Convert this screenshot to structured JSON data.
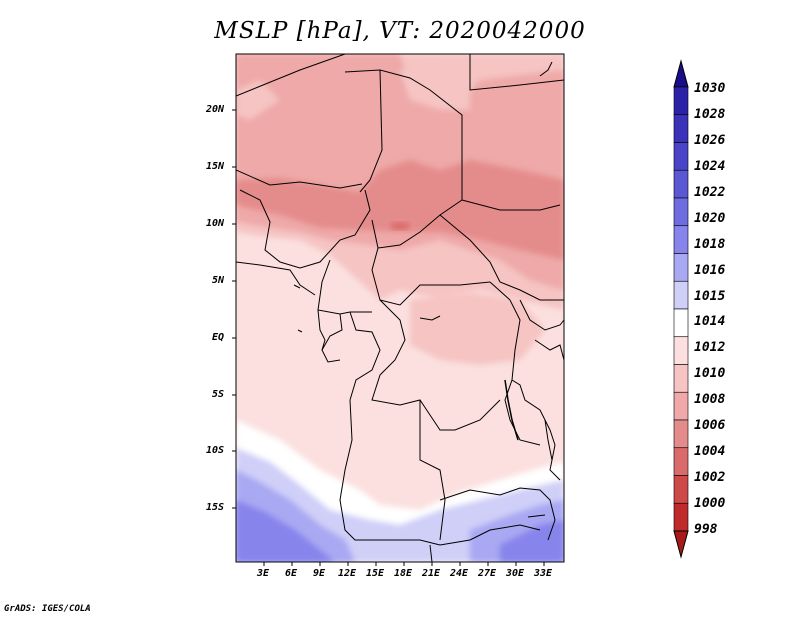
{
  "title": "MSLP [hPa], VT: 2020042000",
  "footer": "GrADS: IGES/COLA",
  "map": {
    "lat_ticks": [
      "20N",
      "15N",
      "10N",
      "5N",
      "EQ",
      "5S",
      "10S",
      "15S"
    ],
    "lon_ticks": [
      "3E",
      "6E",
      "9E",
      "12E",
      "15E",
      "18E",
      "21E",
      "24E",
      "27E",
      "30E",
      "33E"
    ]
  },
  "colorbar": {
    "labels": [
      "1030",
      "1028",
      "1026",
      "1024",
      "1022",
      "1020",
      "1018",
      "1016",
      "1015",
      "1014",
      "1012",
      "1010",
      "1008",
      "1006",
      "1004",
      "1002",
      "1000",
      "998"
    ],
    "colors": [
      "#1a0d8c",
      "#2b22a8",
      "#3a33b8",
      "#4a45c8",
      "#5b58d4",
      "#6e6ce0",
      "#8784ec",
      "#a9a8f2",
      "#cfcff8",
      "#ffffff",
      "#fbe0df",
      "#f5c4c3",
      "#eea9a8",
      "#e48c8b",
      "#d96c6b",
      "#cd4a49",
      "#bf2b2a",
      "#a81a19"
    ]
  },
  "colors": {
    "land_border": "#000000",
    "frame": "#000000"
  }
}
